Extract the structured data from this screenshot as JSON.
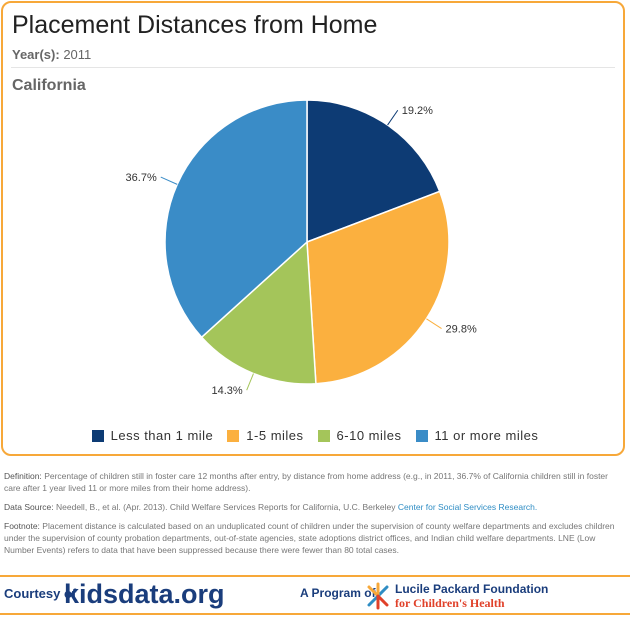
{
  "header": {
    "title": "Placement Distances from Home",
    "year_label": "Year(s):",
    "year_value": "2011",
    "region": "California"
  },
  "chart_data": {
    "type": "pie",
    "title": "Placement Distances from Home",
    "categories": [
      "Less than 1 mile",
      "1-5 miles",
      "6-10 miles",
      "11 or more miles"
    ],
    "values": [
      19.2,
      29.8,
      14.3,
      36.7
    ],
    "labels": [
      "19.2%",
      "29.8%",
      "14.3%",
      "36.7%"
    ],
    "colors": [
      "#0d3b74",
      "#fbb03f",
      "#a4c55a",
      "#3a8cc7"
    ],
    "legend_placement": "bottom",
    "start_angle": "top",
    "direction": "clockwise"
  },
  "notes": {
    "definition_label": "Definition:",
    "definition": "Percentage of children still in foster care 12 months after entry, by distance from home address (e.g., in 2011, 36.7% of California children still in foster care after 1 year lived 11 or more miles from their home address).",
    "source_label": "Data Source:",
    "source": "Needell, B., et al. (Apr. 2013). Child Welfare Services Reports for California, U.C. Berkeley",
    "source_link": "Center for Social Services Research.",
    "footnote_label": "Footnote:",
    "footnote": "Placement distance is calculated based on an unduplicated count of children under the supervision of county welfare departments and excludes children under the supervision of county probation departments, out-of-state agencies, state adoptions district offices, and Indian child welfare departments. LNE (Low Number Events) refers to data that have been suppressed because there were fewer than 80 total cases."
  },
  "footer": {
    "courtesy": "Courtesy of",
    "brand": "kidsdata.org",
    "program": "A Program of",
    "foundation_line1": "Lucile Packard Foundation",
    "foundation_line2": "for Children's Health"
  }
}
